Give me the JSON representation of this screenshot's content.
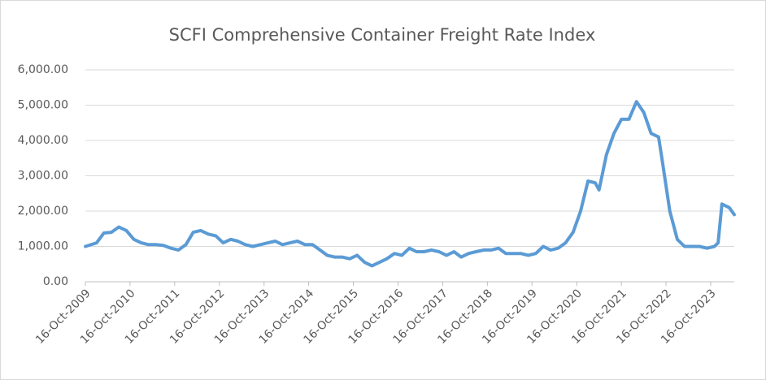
{
  "chart_data": {
    "type": "line",
    "title": "SCFI Comprehensive Container Freight Rate Index",
    "x": [
      "2009-10-16",
      "2010-01-16",
      "2010-03-16",
      "2010-05-16",
      "2010-07-16",
      "2010-09-16",
      "2010-11-16",
      "2011-01-16",
      "2011-03-16",
      "2011-05-16",
      "2011-07-16",
      "2011-09-16",
      "2011-11-16",
      "2012-01-16",
      "2012-03-16",
      "2012-05-16",
      "2012-07-16",
      "2012-09-16",
      "2012-11-16",
      "2013-01-16",
      "2013-03-16",
      "2013-05-16",
      "2013-07-16",
      "2013-09-16",
      "2013-11-16",
      "2014-01-16",
      "2014-03-16",
      "2014-05-16",
      "2014-07-16",
      "2014-09-16",
      "2014-11-16",
      "2015-01-16",
      "2015-03-16",
      "2015-05-16",
      "2015-07-16",
      "2015-09-16",
      "2015-11-16",
      "2016-01-16",
      "2016-03-16",
      "2016-05-16",
      "2016-07-16",
      "2016-09-16",
      "2016-11-16",
      "2017-01-16",
      "2017-03-16",
      "2017-05-16",
      "2017-07-16",
      "2017-09-16",
      "2017-11-16",
      "2018-01-16",
      "2018-03-16",
      "2018-05-16",
      "2018-07-16",
      "2018-09-16",
      "2018-11-16",
      "2019-01-16",
      "2019-03-16",
      "2019-05-16",
      "2019-07-16",
      "2019-09-16",
      "2019-11-16",
      "2020-01-16",
      "2020-03-16",
      "2020-05-16",
      "2020-07-16",
      "2020-09-16",
      "2020-11-16",
      "2021-01-16",
      "2021-03-16",
      "2021-04-16",
      "2021-06-16",
      "2021-08-16",
      "2021-10-16",
      "2021-12-16",
      "2022-02-16",
      "2022-04-16",
      "2022-06-16",
      "2022-08-16",
      "2022-09-16",
      "2022-11-16",
      "2023-01-16",
      "2023-03-16",
      "2023-05-16",
      "2023-07-16",
      "2023-09-16",
      "2023-11-16",
      "2023-12-16",
      "2024-01-16",
      "2024-03-16",
      "2024-04-26"
    ],
    "series": [
      {
        "name": "SCFI",
        "color": "#5b9bd5",
        "values": [
          1000,
          1100,
          1380,
          1400,
          1550,
          1450,
          1200,
          1100,
          1050,
          1050,
          1030,
          950,
          900,
          1050,
          1400,
          1450,
          1350,
          1300,
          1100,
          1200,
          1150,
          1050,
          1000,
          1050,
          1100,
          1150,
          1050,
          1100,
          1150,
          1050,
          1050,
          900,
          750,
          700,
          700,
          650,
          750,
          550,
          450,
          550,
          650,
          800,
          750,
          950,
          850,
          850,
          900,
          850,
          750,
          850,
          700,
          800,
          850,
          900,
          900,
          950,
          800,
          800,
          800,
          750,
          800,
          1000,
          900,
          950,
          1100,
          1400,
          2000,
          2850,
          2800,
          2600,
          3600,
          4200,
          4600,
          4600,
          5100,
          4800,
          4200,
          4100,
          3400,
          2000,
          1200,
          1000,
          1000,
          1000,
          950,
          1000,
          1100,
          2200,
          2100,
          1900
        ]
      }
    ],
    "xlim": [
      "2009-10-16",
      "2024-04-26"
    ],
    "xticks": [
      {
        "value": "2009-10-16",
        "label": "16-Oct-2009"
      },
      {
        "value": "2010-10-16",
        "label": "16-Oct-2010"
      },
      {
        "value": "2011-10-16",
        "label": "16-Oct-2011"
      },
      {
        "value": "2012-10-16",
        "label": "16-Oct-2012"
      },
      {
        "value": "2013-10-16",
        "label": "16-Oct-2013"
      },
      {
        "value": "2014-10-16",
        "label": "16-Oct-2014"
      },
      {
        "value": "2015-10-16",
        "label": "16-Oct-2015"
      },
      {
        "value": "2016-10-16",
        "label": "16-Oct-2016"
      },
      {
        "value": "2017-10-16",
        "label": "16-Oct-2017"
      },
      {
        "value": "2018-10-16",
        "label": "16-Oct-2018"
      },
      {
        "value": "2019-10-16",
        "label": "16-Oct-2019"
      },
      {
        "value": "2020-10-16",
        "label": "16-Oct-2020"
      },
      {
        "value": "2021-10-16",
        "label": "16-Oct-2021"
      },
      {
        "value": "2022-10-16",
        "label": "16-Oct-2022"
      },
      {
        "value": "2023-10-16",
        "label": "16-Oct-2023"
      }
    ],
    "ylim": [
      0,
      6000
    ],
    "yticks": [
      {
        "value": 0,
        "label": "0.00"
      },
      {
        "value": 1000,
        "label": "1,000.00"
      },
      {
        "value": 2000,
        "label": "2,000.00"
      },
      {
        "value": 3000,
        "label": "3,000.00"
      },
      {
        "value": 4000,
        "label": "4,000.00"
      },
      {
        "value": 5000,
        "label": "5,000.00"
      },
      {
        "value": 6000,
        "label": "6,000.00"
      }
    ],
    "grid": true
  }
}
